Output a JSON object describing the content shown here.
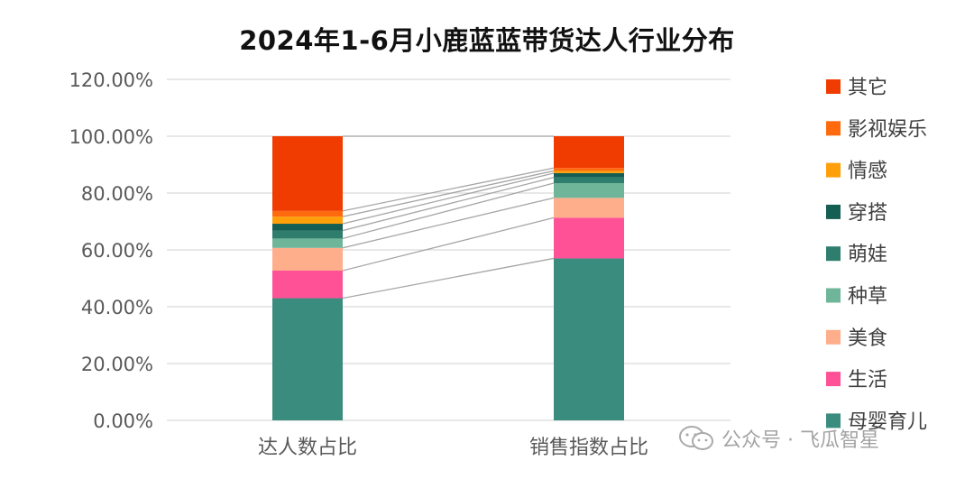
{
  "chart_data": {
    "type": "bar",
    "stacked": true,
    "title": "2024年1-6月小鹿蓝蓝带货达人行业分布",
    "categories": [
      "达人数占比",
      "销售指数占比"
    ],
    "ylim": [
      0,
      120
    ],
    "yticks": [
      "0.00%",
      "20.00%",
      "40.00%",
      "60.00%",
      "80.00%",
      "100.00%",
      "120.00%"
    ],
    "ytick_values": [
      0,
      20,
      40,
      60,
      80,
      100,
      120
    ],
    "grid": true,
    "series_lines": true,
    "legend_position": "right",
    "series": [
      {
        "name": "母婴育儿",
        "color": "#3A8C7E",
        "values": [
          43.0,
          57.0
        ]
      },
      {
        "name": "生活",
        "color": "#FF5296",
        "values": [
          9.7,
          14.3
        ]
      },
      {
        "name": "美食",
        "color": "#FFAE8C",
        "values": [
          8.0,
          7.0
        ]
      },
      {
        "name": "种草",
        "color": "#6FB59A",
        "values": [
          3.3,
          5.2
        ]
      },
      {
        "name": "萌娃",
        "color": "#2F7D6D",
        "values": [
          2.8,
          2.0
        ]
      },
      {
        "name": "穿搭",
        "color": "#155E54",
        "values": [
          2.4,
          1.5
        ]
      },
      {
        "name": "情感",
        "color": "#FF9F0A",
        "values": [
          2.5,
          0.8
        ]
      },
      {
        "name": "影视娱乐",
        "color": "#FF6A0F",
        "values": [
          2.0,
          1.0
        ]
      },
      {
        "name": "其它",
        "color": "#F03C00",
        "values": [
          26.3,
          11.2
        ]
      }
    ]
  },
  "watermark": {
    "text": "公众号 · 飞瓜智星",
    "icon": "wechat-icon"
  }
}
